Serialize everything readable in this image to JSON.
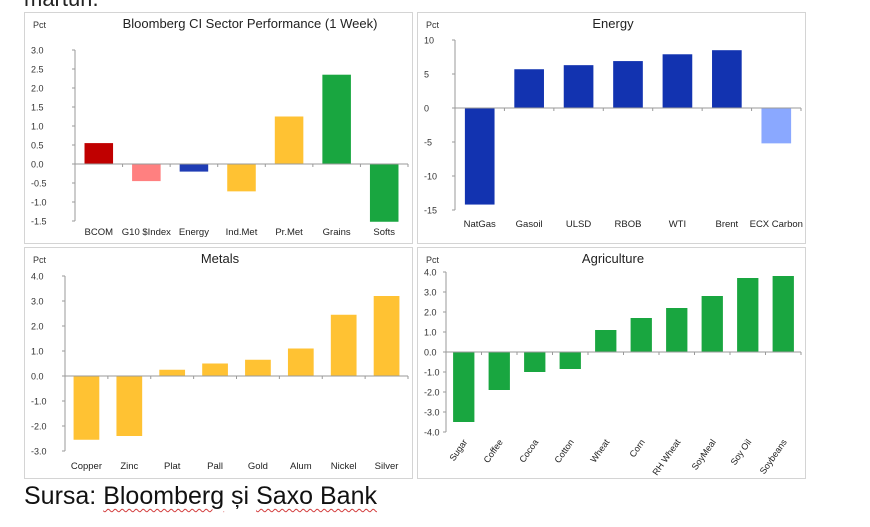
{
  "top_fragment": "marturi.",
  "source": {
    "prefix": "Sursa: ",
    "name1": "Bloomberg",
    "conj": " și ",
    "name2": "Saxo Bank"
  },
  "chart_data": [
    {
      "type": "bar",
      "title": "Bloomberg CI Sector Performance (1 Week)",
      "ylabel": "Pct",
      "ylim": [
        -1.5,
        3.0
      ],
      "yticks": [
        3.0,
        2.5,
        2.0,
        1.5,
        1.0,
        0.5,
        0.0,
        -0.5,
        -1.0,
        -1.5
      ],
      "tick_decimals": 1,
      "label_rotate": 0,
      "categories": [
        "BCOM",
        "G10 $Index",
        "Energy",
        "Ind.Met",
        "Pr.Met",
        "Grains",
        "Softs"
      ],
      "values": [
        0.55,
        -0.45,
        -0.2,
        -0.72,
        1.25,
        2.35,
        -1.52
      ],
      "colors": [
        "#c00000",
        "#ff8080",
        "#1f3cb4",
        "#ffc233",
        "#ffc233",
        "#19a640",
        "#19a640"
      ]
    },
    {
      "type": "bar",
      "title": "Energy",
      "ylabel": "Pct",
      "ylim": [
        -15,
        10
      ],
      "yticks": [
        10,
        5,
        0,
        -5,
        -10,
        -15
      ],
      "tick_decimals": 0,
      "label_rotate": 0,
      "categories": [
        "NatGas",
        "Gasoil",
        "ULSD",
        "RBOB",
        "WTI",
        "Brent",
        "ECX Carbon"
      ],
      "values": [
        -14.2,
        5.7,
        6.3,
        6.9,
        7.9,
        8.5,
        -5.2
      ],
      "colors": [
        "#1233b0",
        "#1233b0",
        "#1233b0",
        "#1233b0",
        "#1233b0",
        "#1233b0",
        "#8aa8ff"
      ]
    },
    {
      "type": "bar",
      "title": "Metals",
      "ylabel": "Pct",
      "ylim": [
        -3.0,
        4.0
      ],
      "yticks": [
        4.0,
        3.0,
        2.0,
        1.0,
        0.0,
        -1.0,
        -2.0,
        -3.0
      ],
      "tick_decimals": 1,
      "label_rotate": 0,
      "categories": [
        "Copper",
        "Zinc",
        "Plat",
        "Pall",
        "Gold",
        "Alum",
        "Nickel",
        "Silver"
      ],
      "values": [
        -2.55,
        -2.4,
        0.25,
        0.5,
        0.65,
        1.1,
        2.45,
        3.2
      ],
      "colors": [
        "#ffc233",
        "#ffc233",
        "#ffc233",
        "#ffc233",
        "#ffc233",
        "#ffc233",
        "#ffc233",
        "#ffc233"
      ]
    },
    {
      "type": "bar",
      "title": "Agriculture",
      "ylabel": "Pct",
      "ylim": [
        -4.0,
        4.0
      ],
      "yticks": [
        4.0,
        3.0,
        2.0,
        1.0,
        0.0,
        -1.0,
        -2.0,
        -3.0,
        -4.0
      ],
      "tick_decimals": 1,
      "label_rotate": -55,
      "categories": [
        "Sugar",
        "Coffee",
        "Cocoa",
        "Cotton",
        "Wheat",
        "Corn",
        "RH Wheat",
        "SoyMeal",
        "Soy Oil",
        "Soybeans"
      ],
      "values": [
        -3.5,
        -1.9,
        -1.0,
        -0.85,
        1.1,
        1.7,
        2.2,
        2.8,
        3.7,
        3.8
      ],
      "colors": [
        "#19a640",
        "#19a640",
        "#19a640",
        "#19a640",
        "#19a640",
        "#19a640",
        "#19a640",
        "#19a640",
        "#19a640",
        "#19a640"
      ]
    }
  ]
}
